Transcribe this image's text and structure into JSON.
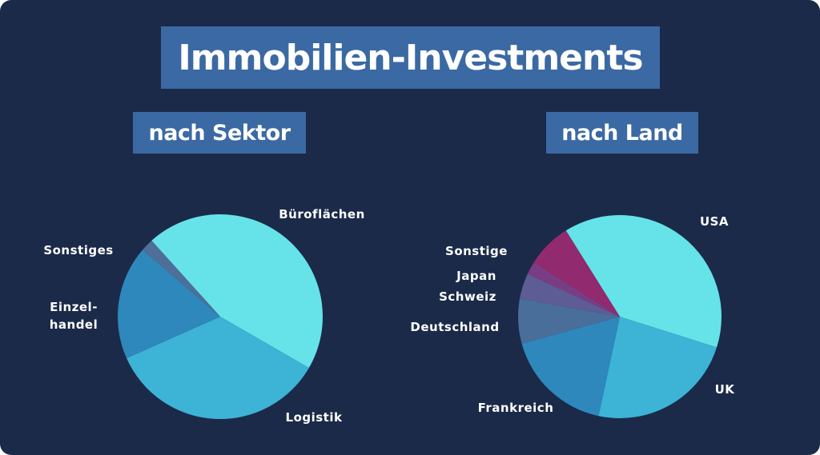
{
  "title": "Immobilien-Investments",
  "chart_data": [
    {
      "type": "pie",
      "title": "nach Sektor",
      "slices": [
        {
          "label": "Büroflächen",
          "value": 45,
          "color": "#66e3e8"
        },
        {
          "label": "Logistik",
          "value": 35,
          "color": "#3db3d6"
        },
        {
          "label": "Einzel-\nhandel",
          "value": 18,
          "color": "#2e88bb"
        },
        {
          "label": "Sonstiges",
          "value": 2,
          "color": "#4e6f99"
        }
      ]
    },
    {
      "type": "pie",
      "title": "nach Land",
      "slices": [
        {
          "label": "USA",
          "value": 38,
          "color": "#66e3e8"
        },
        {
          "label": "UK",
          "value": 23,
          "color": "#3db3d6"
        },
        {
          "label": "Frankreich",
          "value": 17,
          "color": "#2e88bb"
        },
        {
          "label": "Deutschland",
          "value": 7,
          "color": "#4a6e9a"
        },
        {
          "label": "Schweiz",
          "value": 4,
          "color": "#5e5c95"
        },
        {
          "label": "Japan",
          "value": 2,
          "color": "#7a3d83"
        },
        {
          "label": "Sonstige",
          "value": 7,
          "color": "#922a70"
        }
      ]
    }
  ]
}
